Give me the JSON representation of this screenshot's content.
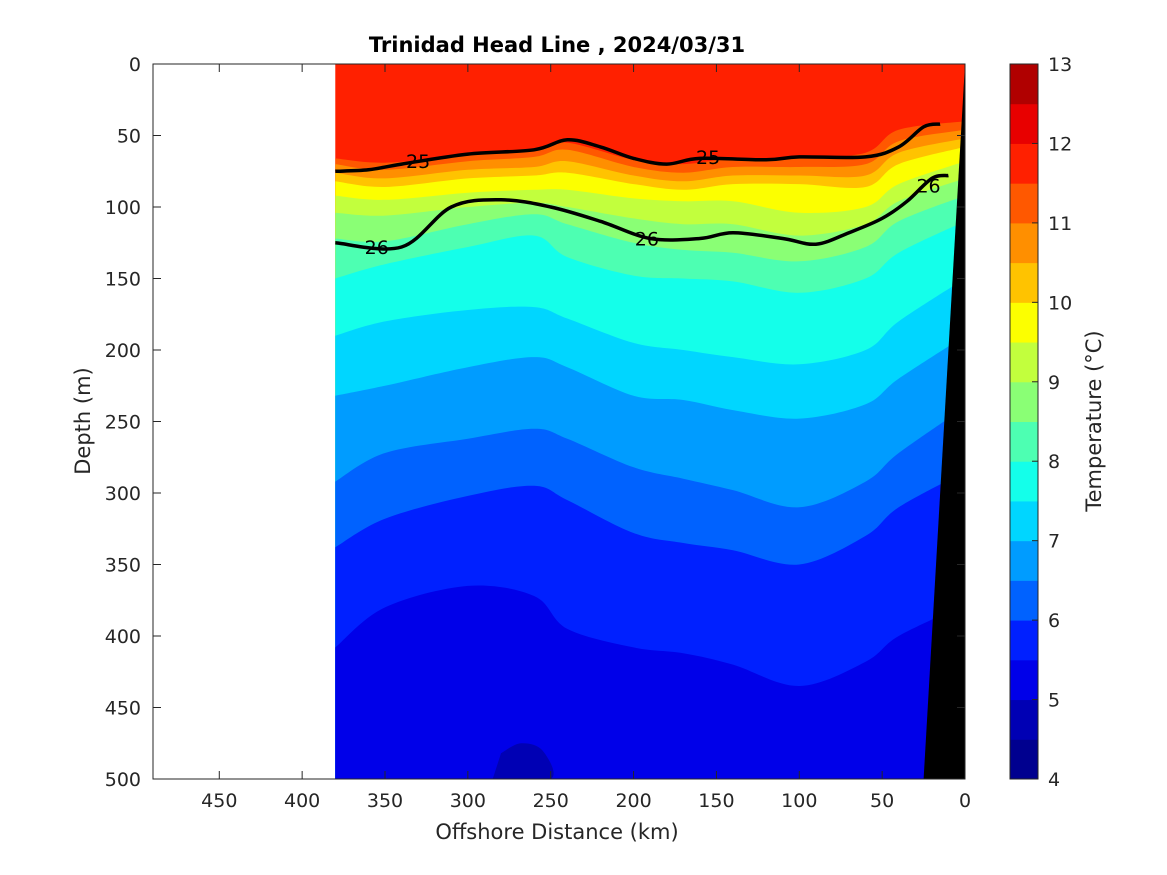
{
  "chart_data": {
    "type": "contour",
    "title": "Trinidad Head Line , 2024/03/31",
    "xlabel": "Offshore Distance (km)",
    "ylabel": "Depth (m)",
    "xlim": [
      490,
      0
    ],
    "ylim": [
      0,
      500
    ],
    "x_reversed": true,
    "y_reversed": true,
    "xticks": [
      450,
      400,
      350,
      300,
      250,
      200,
      150,
      100,
      50,
      0
    ],
    "yticks": [
      0,
      50,
      100,
      150,
      200,
      250,
      300,
      350,
      400,
      450,
      500
    ],
    "data_extent_x": [
      380,
      0
    ],
    "colorbar": {
      "label": "Temperature (°C)",
      "range": [
        4,
        13
      ],
      "ticks": [
        4,
        5,
        6,
        7,
        8,
        9,
        10,
        11,
        12,
        13
      ],
      "levels": [
        {
          "lo": 4.0,
          "hi": 4.5,
          "color": "#00008f"
        },
        {
          "lo": 4.5,
          "hi": 5.0,
          "color": "#0000b4"
        },
        {
          "lo": 5.0,
          "hi": 5.5,
          "color": "#0000e9"
        },
        {
          "lo": 5.5,
          "hi": 6.0,
          "color": "#0020ff"
        },
        {
          "lo": 6.0,
          "hi": 6.5,
          "color": "#0062ff"
        },
        {
          "lo": 6.5,
          "hi": 7.0,
          "color": "#009cff"
        },
        {
          "lo": 7.0,
          "hi": 7.5,
          "color": "#00d6ff"
        },
        {
          "lo": 7.5,
          "hi": 8.0,
          "color": "#14ffea"
        },
        {
          "lo": 8.0,
          "hi": 8.5,
          "color": "#4dffb2"
        },
        {
          "lo": 8.5,
          "hi": 9.0,
          "color": "#8aff75"
        },
        {
          "lo": 9.0,
          "hi": 9.5,
          "color": "#c2ff3d"
        },
        {
          "lo": 9.5,
          "hi": 10.0,
          "color": "#fcff00"
        },
        {
          "lo": 10.0,
          "hi": 10.5,
          "color": "#ffc300"
        },
        {
          "lo": 10.5,
          "hi": 11.0,
          "color": "#ff8f00"
        },
        {
          "lo": 11.0,
          "hi": 11.5,
          "color": "#ff5800"
        },
        {
          "lo": 11.5,
          "hi": 12.0,
          "color": "#ff2000"
        },
        {
          "lo": 12.0,
          "hi": 12.5,
          "color": "#e80000"
        },
        {
          "lo": 12.5,
          "hi": 13.0,
          "color": "#b00000"
        }
      ]
    },
    "temperature_bands": [
      {
        "upper_boundary_t": 13,
        "color": "#ff2000",
        "boundary": []
      },
      {
        "upper_boundary_t": 11.5,
        "color": "#ff5800",
        "boundary": [
          [
            380,
            66
          ],
          [
            350,
            69
          ],
          [
            300,
            64
          ],
          [
            260,
            60
          ],
          [
            240,
            55
          ],
          [
            200,
            67
          ],
          [
            170,
            70
          ],
          [
            140,
            66
          ],
          [
            100,
            66
          ],
          [
            60,
            62
          ],
          [
            40,
            46
          ],
          [
            0,
            40
          ]
        ]
      },
      {
        "upper_boundary_t": 11.0,
        "color": "#ff8f00",
        "boundary": [
          [
            380,
            70
          ],
          [
            350,
            74
          ],
          [
            300,
            68
          ],
          [
            260,
            65
          ],
          [
            240,
            60
          ],
          [
            200,
            72
          ],
          [
            170,
            76
          ],
          [
            140,
            72
          ],
          [
            100,
            72
          ],
          [
            60,
            70
          ],
          [
            40,
            54
          ],
          [
            0,
            46
          ]
        ]
      },
      {
        "upper_boundary_t": 10.5,
        "color": "#ffc300",
        "boundary": [
          [
            380,
            76
          ],
          [
            350,
            80
          ],
          [
            300,
            74
          ],
          [
            260,
            72
          ],
          [
            240,
            68
          ],
          [
            200,
            78
          ],
          [
            170,
            82
          ],
          [
            140,
            78
          ],
          [
            100,
            78
          ],
          [
            60,
            78
          ],
          [
            40,
            62
          ],
          [
            0,
            52
          ]
        ]
      },
      {
        "upper_boundary_t": 10.0,
        "color": "#fcff00",
        "boundary": [
          [
            380,
            82
          ],
          [
            350,
            86
          ],
          [
            300,
            80
          ],
          [
            260,
            78
          ],
          [
            240,
            76
          ],
          [
            200,
            84
          ],
          [
            170,
            88
          ],
          [
            140,
            84
          ],
          [
            100,
            84
          ],
          [
            60,
            86
          ],
          [
            40,
            70
          ],
          [
            0,
            58
          ]
        ]
      },
      {
        "upper_boundary_t": 9.5,
        "color": "#c2ff3d",
        "boundary": [
          [
            380,
            92
          ],
          [
            350,
            95
          ],
          [
            300,
            90
          ],
          [
            260,
            88
          ],
          [
            240,
            88
          ],
          [
            200,
            94
          ],
          [
            170,
            96
          ],
          [
            140,
            96
          ],
          [
            100,
            104
          ],
          [
            60,
            100
          ],
          [
            40,
            84
          ],
          [
            0,
            68
          ]
        ]
      },
      {
        "upper_boundary_t": 9.0,
        "color": "#8aff75",
        "boundary": [
          [
            380,
            104
          ],
          [
            350,
            106
          ],
          [
            300,
            100
          ],
          [
            260,
            97
          ],
          [
            240,
            100
          ],
          [
            200,
            108
          ],
          [
            170,
            112
          ],
          [
            140,
            112
          ],
          [
            100,
            120
          ],
          [
            60,
            112
          ],
          [
            40,
            96
          ],
          [
            0,
            80
          ]
        ]
      },
      {
        "upper_boundary_t": 8.5,
        "color": "#4dffb2",
        "boundary": [
          [
            380,
            122
          ],
          [
            350,
            124
          ],
          [
            300,
            112
          ],
          [
            260,
            105
          ],
          [
            240,
            112
          ],
          [
            200,
            125
          ],
          [
            170,
            130
          ],
          [
            140,
            132
          ],
          [
            100,
            138
          ],
          [
            60,
            128
          ],
          [
            40,
            110
          ],
          [
            0,
            92
          ]
        ]
      },
      {
        "upper_boundary_t": 8.0,
        "color": "#14ffea",
        "boundary": [
          [
            380,
            150
          ],
          [
            350,
            140
          ],
          [
            300,
            128
          ],
          [
            260,
            120
          ],
          [
            240,
            135
          ],
          [
            200,
            148
          ],
          [
            170,
            150
          ],
          [
            140,
            152
          ],
          [
            100,
            160
          ],
          [
            60,
            150
          ],
          [
            40,
            132
          ],
          [
            0,
            110
          ]
        ]
      },
      {
        "upper_boundary_t": 7.5,
        "color": "#00d6ff",
        "boundary": [
          [
            380,
            190
          ],
          [
            350,
            180
          ],
          [
            300,
            172
          ],
          [
            260,
            170
          ],
          [
            240,
            178
          ],
          [
            200,
            195
          ],
          [
            170,
            200
          ],
          [
            140,
            205
          ],
          [
            100,
            210
          ],
          [
            60,
            200
          ],
          [
            40,
            180
          ],
          [
            0,
            150
          ]
        ]
      },
      {
        "upper_boundary_t": 7.0,
        "color": "#009cff",
        "boundary": [
          [
            380,
            232
          ],
          [
            350,
            225
          ],
          [
            300,
            212
          ],
          [
            260,
            205
          ],
          [
            240,
            212
          ],
          [
            200,
            232
          ],
          [
            170,
            235
          ],
          [
            140,
            242
          ],
          [
            100,
            248
          ],
          [
            60,
            238
          ],
          [
            40,
            220
          ],
          [
            0,
            190
          ]
        ]
      },
      {
        "upper_boundary_t": 6.5,
        "color": "#0062ff",
        "boundary": [
          [
            380,
            292
          ],
          [
            350,
            272
          ],
          [
            300,
            262
          ],
          [
            260,
            255
          ],
          [
            240,
            262
          ],
          [
            200,
            282
          ],
          [
            170,
            290
          ],
          [
            140,
            298
          ],
          [
            100,
            310
          ],
          [
            60,
            292
          ],
          [
            40,
            272
          ],
          [
            0,
            240
          ]
        ]
      },
      {
        "upper_boundary_t": 6.0,
        "color": "#0020ff",
        "boundary": [
          [
            380,
            338
          ],
          [
            350,
            318
          ],
          [
            300,
            302
          ],
          [
            260,
            295
          ],
          [
            240,
            305
          ],
          [
            200,
            328
          ],
          [
            170,
            335
          ],
          [
            140,
            340
          ],
          [
            100,
            350
          ],
          [
            60,
            330
          ],
          [
            40,
            310
          ],
          [
            0,
            285
          ]
        ]
      },
      {
        "upper_boundary_t": 5.5,
        "color": "#0000e9",
        "boundary": [
          [
            380,
            408
          ],
          [
            350,
            380
          ],
          [
            300,
            365
          ],
          [
            260,
            372
          ],
          [
            240,
            395
          ],
          [
            200,
            408
          ],
          [
            170,
            412
          ],
          [
            140,
            420
          ],
          [
            100,
            435
          ],
          [
            60,
            418
          ],
          [
            40,
            400
          ],
          [
            0,
            378
          ]
        ]
      },
      {
        "upper_boundary_t": 5.0,
        "color": "#0000b4",
        "boundary": [
          [
            280,
            482
          ],
          [
            268,
            475
          ],
          [
            255,
            480
          ],
          [
            250,
            500
          ],
          [
            285,
            500
          ]
        ]
      }
    ],
    "density_contours": [
      {
        "sigma": 25,
        "labeled": true,
        "bold": true,
        "points": [
          [
            380,
            75
          ],
          [
            360,
            74
          ],
          [
            340,
            70
          ],
          [
            300,
            63
          ],
          [
            260,
            60
          ],
          [
            240,
            53
          ],
          [
            220,
            58
          ],
          [
            200,
            66
          ],
          [
            180,
            70
          ],
          [
            160,
            66
          ],
          [
            120,
            67
          ],
          [
            100,
            65
          ],
          [
            60,
            65
          ],
          [
            40,
            58
          ],
          [
            25,
            44
          ],
          [
            15,
            42
          ]
        ]
      },
      {
        "sigma": 26,
        "labeled": true,
        "bold": true,
        "points": [
          [
            380,
            125
          ],
          [
            340,
            128
          ],
          [
            310,
            100
          ],
          [
            280,
            95
          ],
          [
            250,
            100
          ],
          [
            220,
            110
          ],
          [
            190,
            122
          ],
          [
            160,
            122
          ],
          [
            140,
            118
          ],
          [
            110,
            122
          ],
          [
            90,
            126
          ],
          [
            70,
            118
          ],
          [
            50,
            108
          ],
          [
            35,
            96
          ],
          [
            20,
            80
          ],
          [
            10,
            78
          ]
        ]
      }
    ],
    "contour_labels": [
      {
        "text": "25",
        "at": [
          330,
          68
        ]
      },
      {
        "text": "25",
        "at": [
          155,
          65
        ]
      },
      {
        "text": "26",
        "at": [
          355,
          128
        ]
      },
      {
        "text": "26",
        "at": [
          192,
          122
        ]
      },
      {
        "text": "26",
        "at": [
          22,
          85
        ]
      }
    ],
    "bathymetry": {
      "color": "#000000",
      "seafloor": [
        [
          0,
          0
        ],
        [
          0,
          500
        ],
        [
          25,
          500
        ]
      ]
    }
  }
}
